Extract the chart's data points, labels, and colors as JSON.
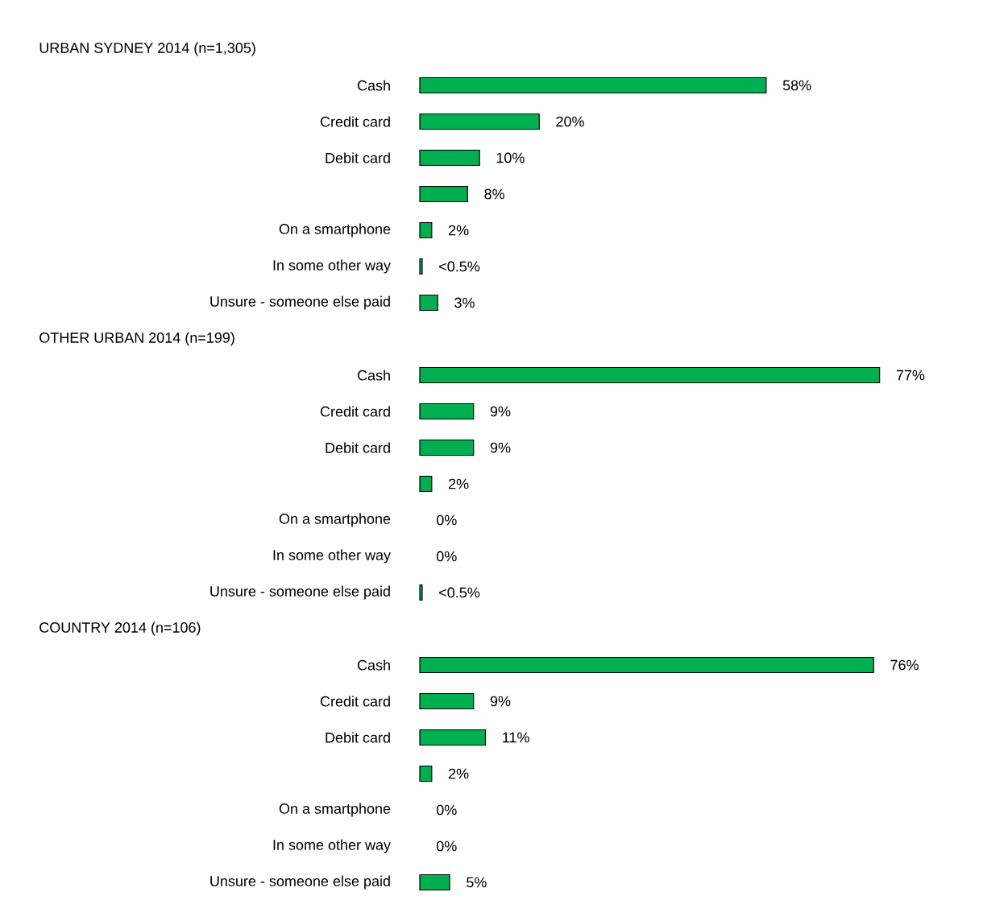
{
  "chart_data": [
    {
      "type": "bar",
      "orientation": "horizontal",
      "title": "URBAN SYDNEY 2014 (n=1,305)",
      "categories": [
        "Cash",
        "Credit card",
        "Debit card",
        null,
        "On a smartphone",
        "In some other way",
        "Unsure - someone else paid"
      ],
      "values": [
        58,
        20,
        10,
        8,
        2,
        0.4,
        3
      ],
      "value_labels": [
        "58%",
        "20%",
        "10%",
        "8%",
        "2%",
        "<0.5%",
        "3%"
      ],
      "color": "#00b050"
    },
    {
      "type": "bar",
      "orientation": "horizontal",
      "title": "OTHER URBAN 2014 (n=199)",
      "categories": [
        "Cash",
        "Credit card",
        "Debit card",
        null,
        "On a smartphone",
        "In some other way",
        "Unsure - someone else paid"
      ],
      "values": [
        77,
        9,
        9,
        2,
        0,
        0,
        0.4
      ],
      "value_labels": [
        "77%",
        "9%",
        "9%",
        "2%",
        "0%",
        "0%",
        "<0.5%"
      ],
      "color": "#00b050"
    },
    {
      "type": "bar",
      "orientation": "horizontal",
      "title": "COUNTRY 2014 (n=106)",
      "categories": [
        "Cash",
        "Credit card",
        "Debit card",
        null,
        "On a smartphone",
        "In some other way",
        "Unsure - someone else paid"
      ],
      "values": [
        76,
        9,
        11,
        2,
        0,
        0,
        5
      ],
      "value_labels": [
        "76%",
        "9%",
        "11%",
        "2%",
        "0%",
        "0%",
        "5%"
      ],
      "color": "#00b050"
    }
  ]
}
